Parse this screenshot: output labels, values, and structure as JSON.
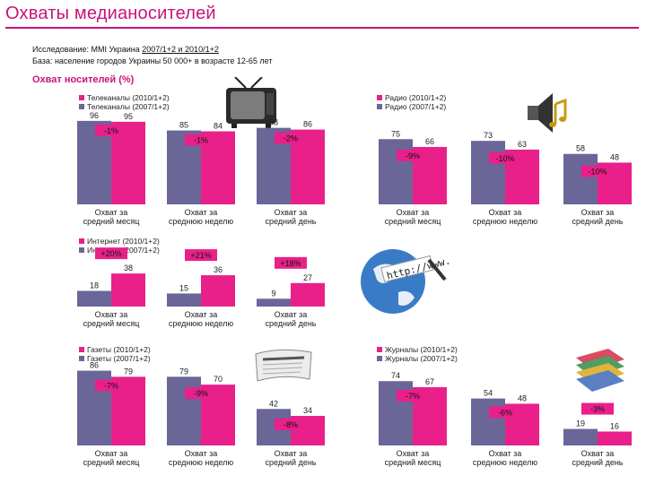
{
  "page": {
    "title": "Охваты медианосителей",
    "study_prefix": "Исследование: MMI Украина ",
    "study_underlined": "2007/1+2 и 2010/1+2",
    "base": "База: население городов Украины 50 000+ в возрасте 12-65 лет",
    "subtitle": "Охват носителей (%)"
  },
  "colors": {
    "pink": "#e9208a",
    "purple": "#6a6698",
    "label_bg": "#e9208a"
  },
  "icons": [
    "tv-icon",
    "speaker-music-icon",
    "globe-http-icon",
    "newspaper-icon",
    "magazines-icon"
  ],
  "chart_data": [
    {
      "type": "bar",
      "name": "tv",
      "legend": [
        "Телеканалы (2010/1+2)",
        "Телеканалы (2007/1+2)"
      ],
      "categories": [
        "Охват за средний месяц",
        "Охват за среднюю неделю",
        "Охват за средний день"
      ],
      "series": [
        {
          "name": "Телеканалы (2007/1+2)",
          "values": [
            96,
            85,
            88
          ]
        },
        {
          "name": "Телеканалы (2010/1+2)",
          "values": [
            95,
            84,
            86
          ]
        }
      ],
      "changes": [
        "-1%",
        "-1%",
        "-2%"
      ]
    },
    {
      "type": "bar",
      "name": "radio",
      "legend": [
        "Радио (2010/1+2)",
        "Радио (2007/1+2)"
      ],
      "categories": [
        "Охват за средний месяц",
        "Охват за среднюю неделю",
        "Охват за средний день"
      ],
      "series": [
        {
          "name": "Радио (2007/1+2)",
          "values": [
            75,
            73,
            58
          ]
        },
        {
          "name": "Радио (2010/1+2)",
          "values": [
            66,
            63,
            48
          ]
        }
      ],
      "changes": [
        "-9%",
        "-10%",
        "-10%"
      ]
    },
    {
      "type": "bar",
      "name": "internet",
      "legend": [
        "Интернет (2010/1+2)",
        "Интернет (2007/1+2)"
      ],
      "categories": [
        "Охват за средний месяц",
        "Охват за среднюю неделю",
        "Охват за средний день"
      ],
      "series": [
        {
          "name": "Интернет (2007/1+2)",
          "values": [
            18,
            15,
            9
          ]
        },
        {
          "name": "Интернет (2010/1+2)",
          "values": [
            38,
            36,
            27
          ]
        }
      ],
      "changes": [
        "+20%",
        "+21%",
        "+18%"
      ]
    },
    {
      "type": "bar",
      "name": "press",
      "legend": [
        "Газеты (2010/1+2)",
        "Газеты (2007/1+2)"
      ],
      "categories": [
        "Охват за средний месяц",
        "Охват за среднюю неделю",
        "Охват за средний день"
      ],
      "series": [
        {
          "name": "Газеты (2007/1+2)",
          "values": [
            86,
            79,
            42
          ]
        },
        {
          "name": "Газеты (2010/1+2)",
          "values": [
            79,
            70,
            34
          ]
        }
      ],
      "changes": [
        "-7%",
        "-9%",
        "-8%"
      ]
    },
    {
      "type": "bar",
      "name": "magazines",
      "legend": [
        "Журналы (2010/1+2)",
        "Журналы (2007/1+2)"
      ],
      "categories": [
        "Охват за средний месяц",
        "Охват за среднюю неделю",
        "Охват за средний день"
      ],
      "series": [
        {
          "name": "Журналы (2007/1+2)",
          "values": [
            74,
            54,
            19
          ]
        },
        {
          "name": "Журналы (2010/1+2)",
          "values": [
            67,
            48,
            16
          ]
        }
      ],
      "changes": [
        "-7%",
        "-6%",
        "-3%"
      ]
    }
  ]
}
